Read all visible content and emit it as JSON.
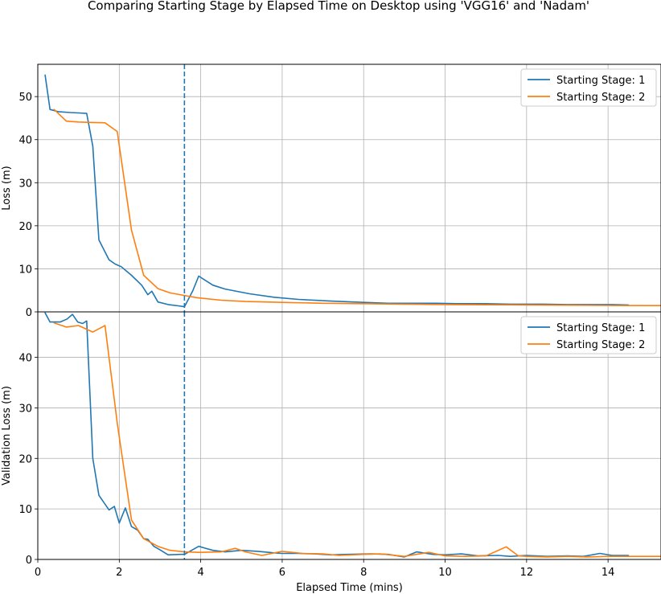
{
  "title": "Comparing Starting Stage by Elapsed Time on Desktop using 'VGG16' and 'Nadam'",
  "colors": {
    "stage1": "#1f77b4",
    "stage2": "#ff7f0e"
  },
  "chart_data": [
    {
      "type": "line",
      "ylabel": "Loss (m)",
      "xlim": [
        0,
        15.3
      ],
      "ylim": [
        0,
        57.5
      ],
      "yticks": [
        0,
        10,
        20,
        30,
        40,
        50
      ],
      "xticks": [
        0,
        2,
        4,
        6,
        8,
        10,
        12,
        14
      ],
      "vline_x": 3.6,
      "grid": true,
      "legend": "top-right",
      "series": [
        {
          "name": "Starting Stage: 1",
          "x": [
            0.18,
            0.3,
            0.5,
            0.8,
            1.0,
            1.2,
            1.35,
            1.5,
            1.75,
            1.9,
            2.05,
            2.3,
            2.55,
            2.7,
            2.8,
            2.95,
            3.2,
            3.45,
            3.6,
            3.8,
            3.95,
            4.3,
            4.6,
            5.2,
            5.8,
            6.4,
            7.2,
            8.0,
            8.6,
            9.2,
            9.8,
            10.3,
            11.0,
            11.6,
            12.4,
            13.0,
            13.6,
            14.1,
            14.5
          ],
          "values": [
            55.0,
            47.0,
            46.5,
            46.3,
            46.2,
            46.1,
            38.5,
            16.7,
            12.1,
            11.1,
            10.5,
            8.5,
            6.2,
            4.0,
            4.8,
            2.3,
            1.7,
            1.4,
            1.2,
            4.8,
            8.3,
            6.2,
            5.3,
            4.2,
            3.4,
            2.9,
            2.5,
            2.2,
            2.0,
            2.0,
            2.0,
            1.9,
            1.9,
            1.8,
            1.8,
            1.7,
            1.7,
            1.7,
            1.6
          ]
        },
        {
          "name": "Starting Stage: 2",
          "x": [
            0.4,
            0.7,
            1.0,
            1.3,
            1.65,
            1.95,
            2.3,
            2.6,
            2.95,
            3.25,
            3.6,
            3.9,
            4.5,
            5.1,
            6.0,
            7.0,
            8.0,
            9.0,
            10.0,
            11.0,
            12.0,
            13.0,
            14.0,
            15.3
          ],
          "values": [
            47.0,
            44.3,
            44.1,
            44.0,
            43.9,
            41.9,
            19.0,
            8.5,
            5.4,
            4.4,
            3.8,
            3.3,
            2.7,
            2.4,
            2.2,
            2.0,
            1.9,
            1.8,
            1.7,
            1.65,
            1.6,
            1.55,
            1.5,
            1.45
          ]
        }
      ]
    },
    {
      "type": "line",
      "xlabel": "Elapsed Time (mins)",
      "ylabel": "Validation Loss (m)",
      "xlim": [
        0,
        15.3
      ],
      "ylim": [
        0,
        49
      ],
      "yticks": [
        0,
        10,
        20,
        30,
        40
      ],
      "xticks": [
        0,
        2,
        4,
        6,
        8,
        10,
        12,
        14
      ],
      "vline_x": 3.6,
      "grid": true,
      "legend": "top-right",
      "series": [
        {
          "name": "Starting Stage: 1",
          "x": [
            0.18,
            0.3,
            0.55,
            0.72,
            0.85,
            0.98,
            1.1,
            1.2,
            1.35,
            1.5,
            1.75,
            1.88,
            2.0,
            2.15,
            2.3,
            2.45,
            2.6,
            2.7,
            2.85,
            3.0,
            3.2,
            3.5,
            3.6,
            3.95,
            4.3,
            4.6,
            5.0,
            5.4,
            5.8,
            6.0,
            6.4,
            6.8,
            7.2,
            7.6,
            8.2,
            8.6,
            9.0,
            9.3,
            9.7,
            10.0,
            10.4,
            10.8,
            11.3,
            11.6,
            12.0,
            12.5,
            13.0,
            13.4,
            13.8,
            14.1,
            14.5
          ],
          "values": [
            48.8,
            47.0,
            47.0,
            47.6,
            48.5,
            47.0,
            46.7,
            47.2,
            20.0,
            12.7,
            9.8,
            10.5,
            7.2,
            10.2,
            6.5,
            5.8,
            4.1,
            4.0,
            2.6,
            1.9,
            0.9,
            1.0,
            1.0,
            2.6,
            1.8,
            1.5,
            1.8,
            1.6,
            1.3,
            1.2,
            1.2,
            1.1,
            0.9,
            1.0,
            1.1,
            1.0,
            0.5,
            1.5,
            1.0,
            0.9,
            1.1,
            0.7,
            0.8,
            0.6,
            0.8,
            0.6,
            0.7,
            0.6,
            1.2,
            0.8,
            0.8
          ]
        },
        {
          "name": "Starting Stage: 2",
          "x": [
            0.4,
            0.7,
            1.0,
            1.35,
            1.65,
            1.95,
            2.3,
            2.6,
            2.95,
            3.25,
            3.6,
            3.95,
            4.5,
            4.85,
            5.1,
            5.5,
            6.0,
            6.5,
            7.0,
            7.4,
            8.0,
            8.4,
            9.0,
            9.6,
            10.0,
            10.5,
            11.0,
            11.5,
            11.8,
            12.0,
            12.5,
            13.0,
            13.5,
            14.0,
            15.3
          ],
          "values": [
            46.8,
            46.0,
            46.3,
            45.0,
            46.3,
            27.0,
            7.8,
            4.1,
            2.6,
            1.8,
            1.5,
            1.4,
            1.5,
            2.2,
            1.5,
            0.8,
            1.6,
            1.2,
            1.1,
            0.8,
            1.0,
            1.1,
            0.6,
            1.4,
            0.7,
            0.6,
            0.7,
            2.5,
            0.7,
            0.6,
            0.5,
            0.6,
            0.5,
            0.6,
            0.6
          ]
        }
      ]
    }
  ]
}
